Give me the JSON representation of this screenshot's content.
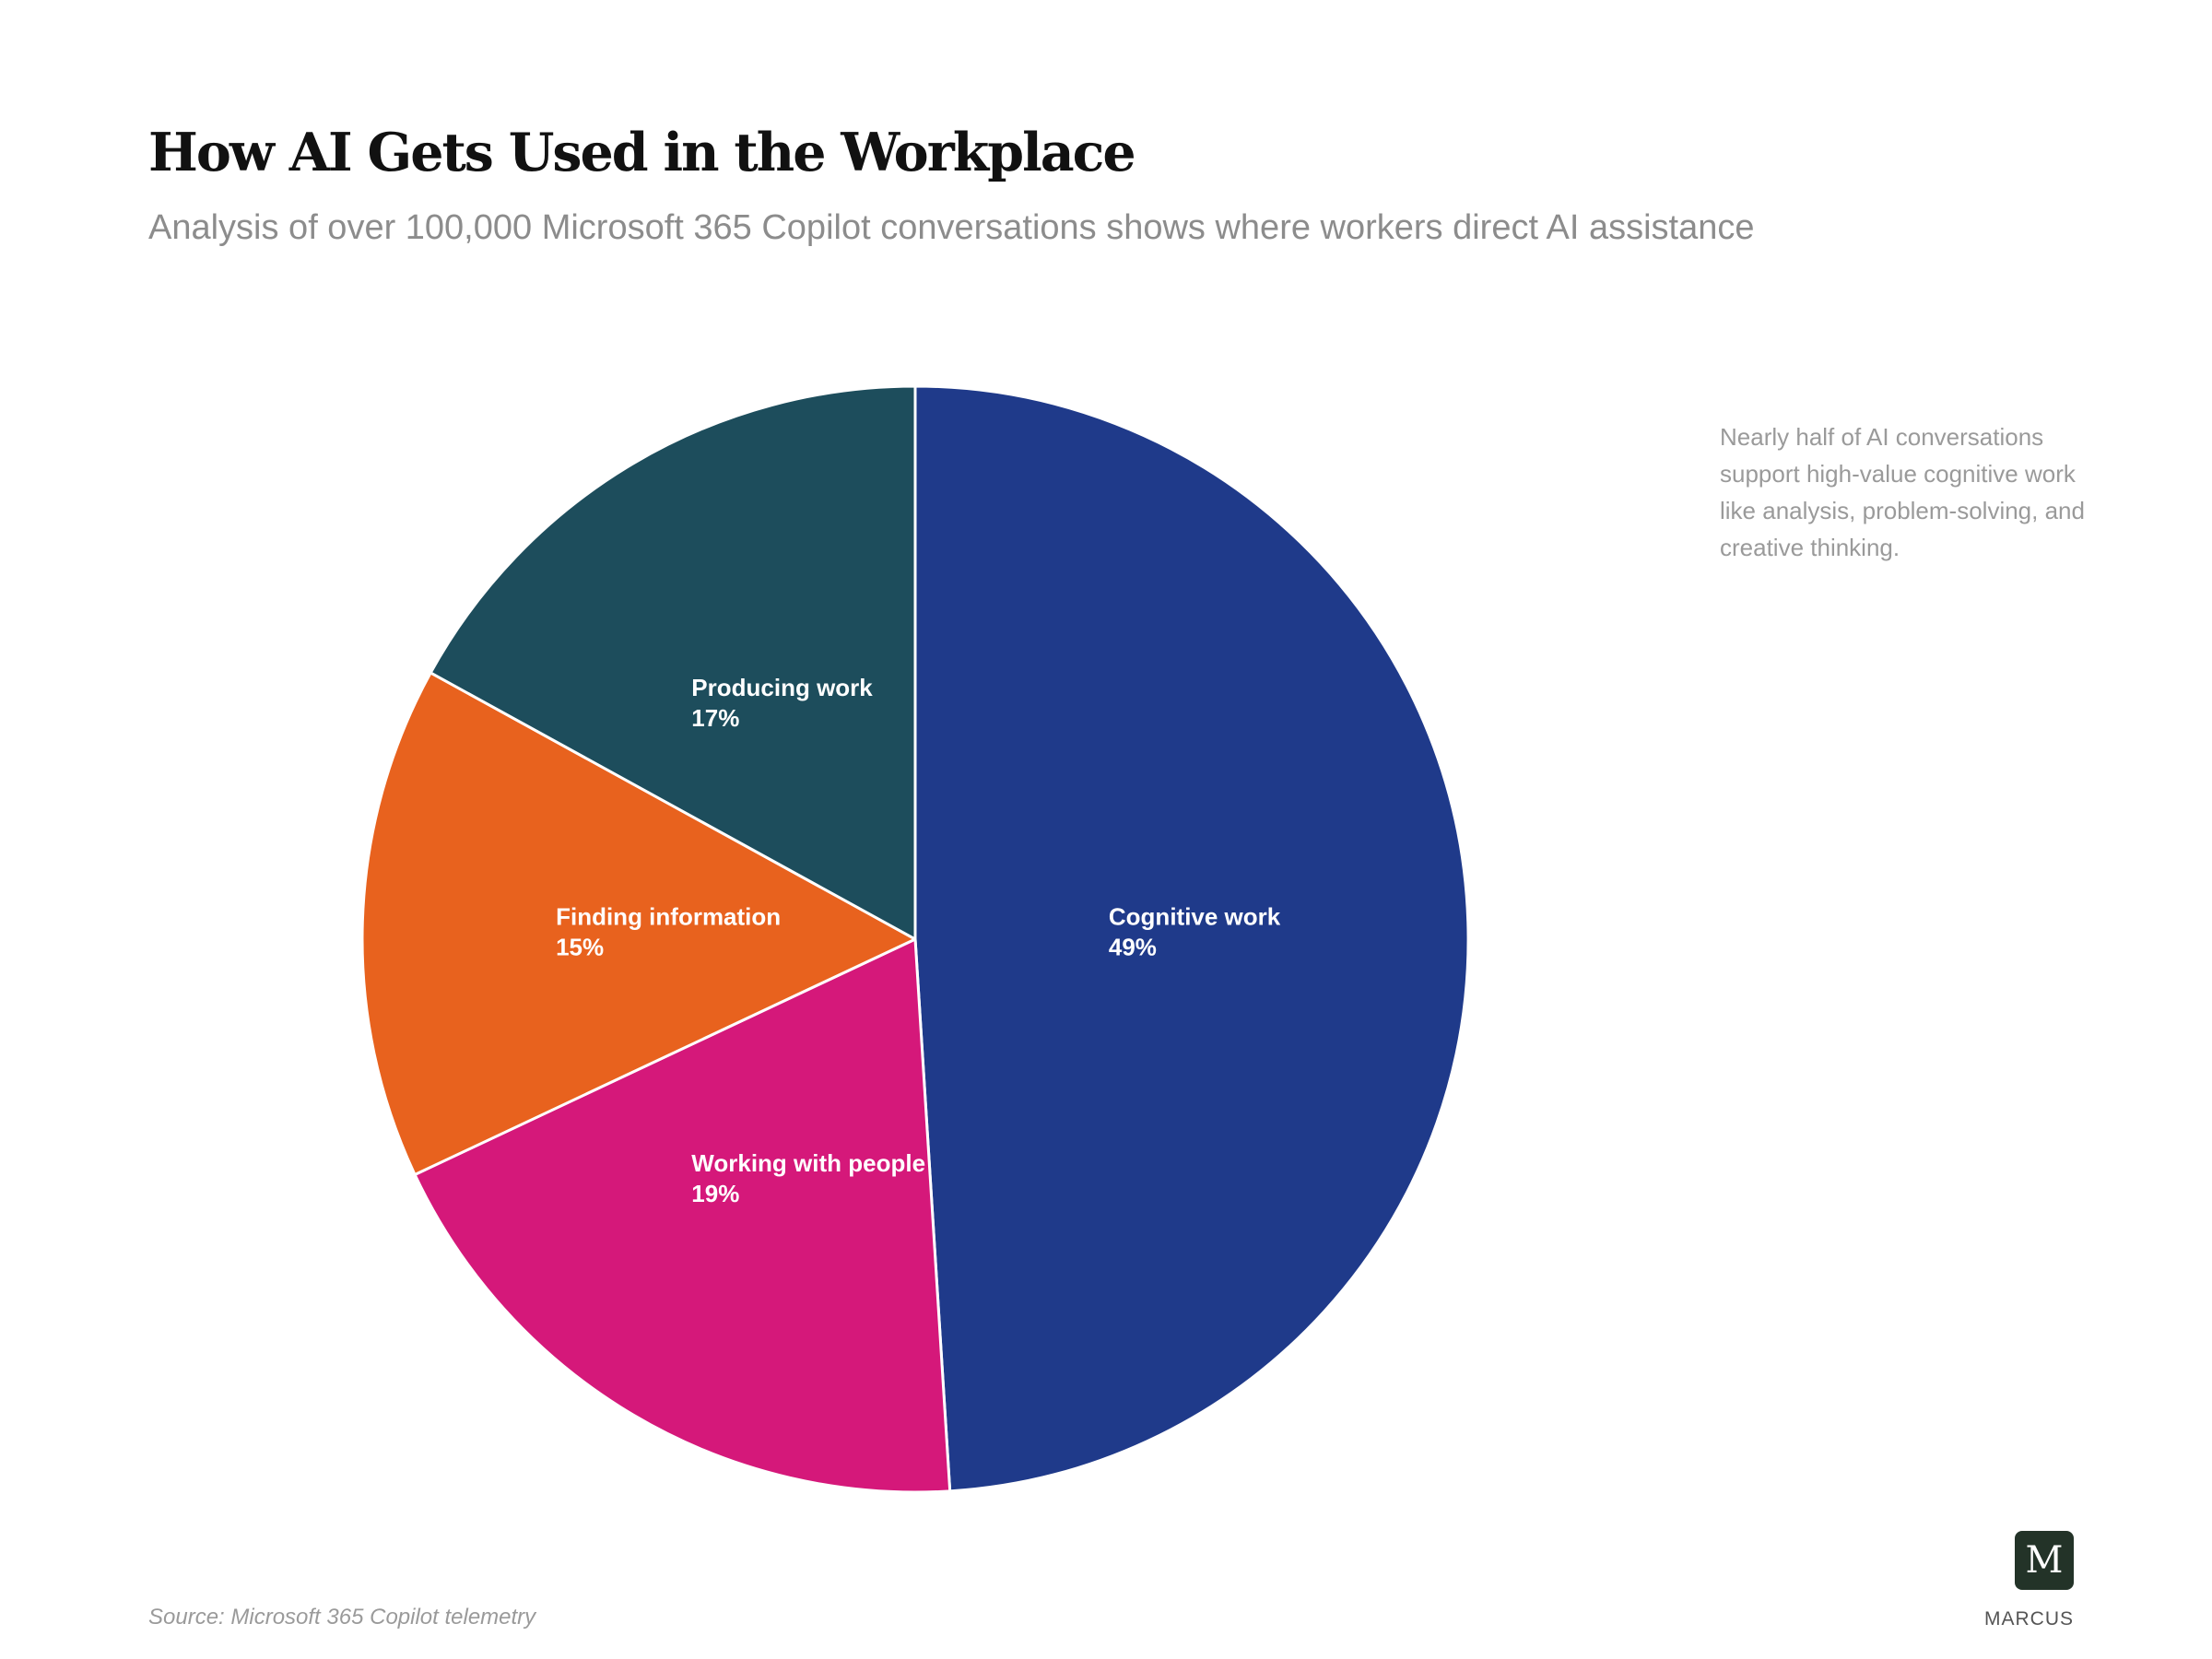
{
  "title": "How AI Gets Used in the Workplace",
  "subtitle": "Analysis of over 100,000 Microsoft 365 Copilot conversations shows where workers direct AI assistance",
  "annotation": "Nearly half of AI conversations support high-value cognitive work like analysis, problem-solving, and creative thinking.",
  "source": "Source: Microsoft 365 Copilot telemetry",
  "brand": {
    "logo_letter": "M",
    "name": "MARCUS"
  },
  "chart_data": {
    "type": "pie",
    "start": "12 o'clock",
    "direction": "clockwise",
    "slices": [
      {
        "label": "Cognitive work",
        "value": 49,
        "display": "49%",
        "color": "#1f3a8a"
      },
      {
        "label": "Working with people",
        "value": 19,
        "display": "19%",
        "color": "#d5187a"
      },
      {
        "label": "Finding information",
        "value": 15,
        "display": "15%",
        "color": "#e8621e"
      },
      {
        "label": "Producing work",
        "value": 17,
        "display": "17%",
        "color": "#1d4d5c"
      }
    ]
  }
}
